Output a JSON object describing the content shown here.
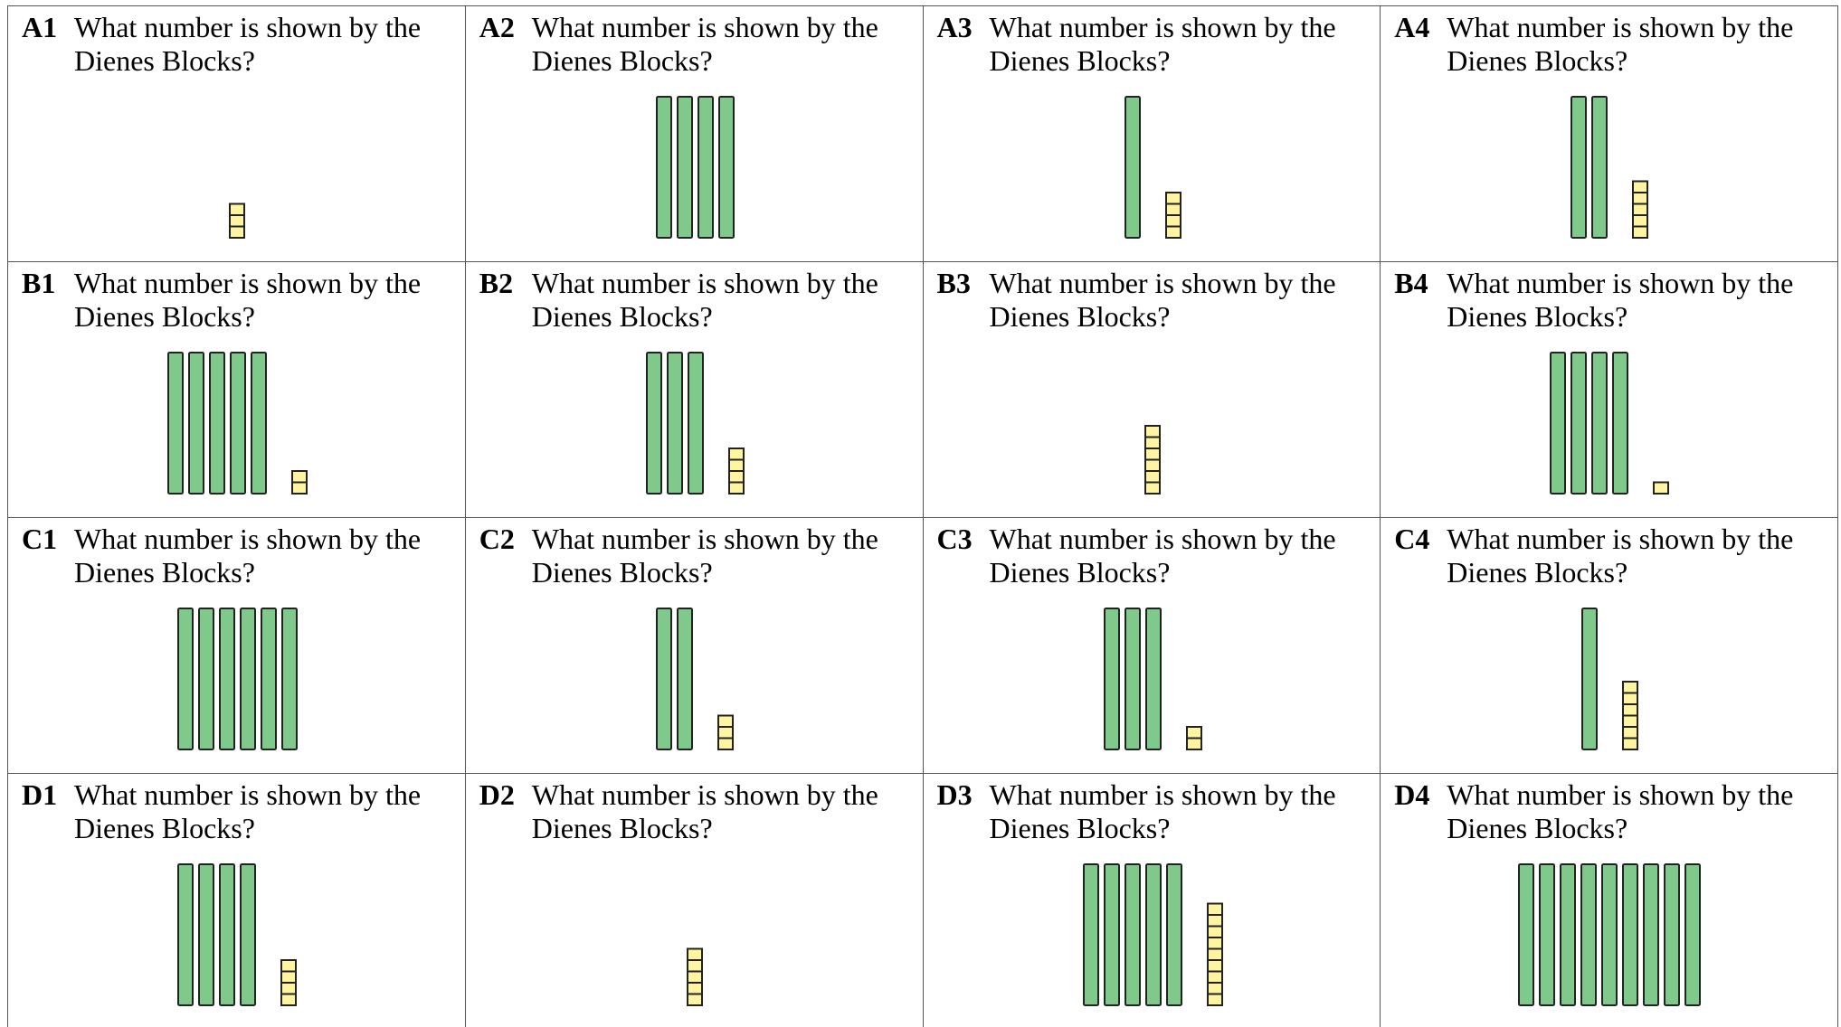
{
  "worksheet": {
    "questions": [
      {
        "label": "A1",
        "text": "What number is shown by the\n Dienes Blocks?",
        "tens": 0,
        "ones": 3
      },
      {
        "label": "A2",
        "text": "What number is shown by the\n Dienes Blocks?",
        "tens": 4,
        "ones": 0
      },
      {
        "label": "A3",
        "text": "What number is shown by the\n Dienes Blocks?",
        "tens": 1,
        "ones": 4
      },
      {
        "label": "A4",
        "text": "What number is shown by the\n Dienes Blocks?",
        "tens": 2,
        "ones": 5
      },
      {
        "label": "B1",
        "text": "What number is shown by the\n Dienes Blocks?",
        "tens": 5,
        "ones": 2
      },
      {
        "label": "B2",
        "text": "What number is shown by the\n Dienes Blocks?",
        "tens": 3,
        "ones": 4
      },
      {
        "label": "B3",
        "text": "What number is shown by the\n Dienes Blocks?",
        "tens": 0,
        "ones": 6
      },
      {
        "label": "B4",
        "text": "What number is shown by the\n Dienes Blocks?",
        "tens": 4,
        "ones": 1
      },
      {
        "label": "C1",
        "text": "What number is shown by the\n Dienes Blocks?",
        "tens": 6,
        "ones": 0
      },
      {
        "label": "C2",
        "text": "What number is shown by the\n Dienes Blocks?",
        "tens": 2,
        "ones": 3
      },
      {
        "label": "C3",
        "text": "What number is shown by the\n Dienes Blocks?",
        "tens": 3,
        "ones": 2
      },
      {
        "label": "C4",
        "text": "What number is shown by the\n Dienes Blocks?",
        "tens": 1,
        "ones": 6
      },
      {
        "label": "D1",
        "text": "What number is shown by the\n Dienes Blocks?",
        "tens": 4,
        "ones": 4
      },
      {
        "label": "D2",
        "text": "What number is shown by the\n Dienes Blocks?",
        "tens": 0,
        "ones": 5
      },
      {
        "label": "D3",
        "text": "What number is shown by the\n Dienes Blocks?",
        "tens": 5,
        "ones": 9
      },
      {
        "label": "D4",
        "text": "What number is shown by the\n Dienes Blocks?",
        "tens": 9,
        "ones": 0
      }
    ]
  },
  "colors": {
    "ten_rod_fill": "#7fc98a",
    "one_cube_fill": "#fff5a0",
    "block_stroke": "#222222",
    "grid_line": "#555555"
  }
}
